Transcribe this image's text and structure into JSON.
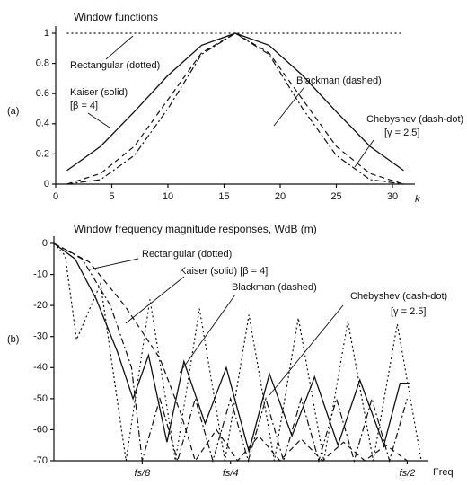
{
  "chart_data": [
    {
      "type": "line",
      "panel_label": "(a)",
      "title": "Window functions",
      "xlabel": "k",
      "x": [
        1,
        4,
        7,
        10,
        13,
        16,
        19,
        22,
        25,
        28,
        31
      ],
      "xlim": [
        0,
        32
      ],
      "xticks": [
        0,
        5,
        10,
        15,
        20,
        25,
        30
      ],
      "ylim": [
        0,
        1
      ],
      "yticks": [
        0,
        0.2,
        0.4,
        0.6,
        0.8,
        1
      ],
      "series": [
        {
          "name": "Rectangular",
          "color": "#111111",
          "dash": "dotted",
          "values": [
            1,
            1,
            1,
            1,
            1,
            1,
            1,
            1,
            1,
            1,
            1
          ]
        },
        {
          "name": "Kaiser",
          "color": "#111111",
          "dash": "solid",
          "values": [
            0.09,
            0.25,
            0.48,
            0.72,
            0.92,
            1,
            0.92,
            0.72,
            0.48,
            0.25,
            0.09
          ]
        },
        {
          "name": "Blackman",
          "color": "#111111",
          "dash": "dashed",
          "values": [
            0.0,
            0.07,
            0.25,
            0.56,
            0.87,
            1,
            0.87,
            0.56,
            0.25,
            0.07,
            0.0
          ]
        },
        {
          "name": "Chebyshev",
          "color": "#111111",
          "dash": "dash-dot",
          "values": [
            0.0,
            0.03,
            0.19,
            0.5,
            0.86,
            1,
            0.86,
            0.5,
            0.19,
            0.03,
            0.0
          ]
        }
      ],
      "annotations": [
        "Rectangular (dotted)",
        "Kaiser (solid)",
        "[β = 4]",
        "Blackman (dashed)",
        "Chebyshev (dash-dot)",
        "[γ = 2.5]"
      ]
    },
    {
      "type": "line",
      "panel_label": "(b)",
      "title": "Window frequency magnitude responses, WdB (m)",
      "xlabel": "Freq",
      "xlim": [
        0,
        0.53
      ],
      "xticks": [
        {
          "value": 0.125,
          "label": "fs/8"
        },
        {
          "value": 0.25,
          "label": "fs/4"
        },
        {
          "value": 0.5,
          "label": "fs/2"
        }
      ],
      "ylim": [
        -70,
        0
      ],
      "yticks": [
        0,
        -10,
        -20,
        -30,
        -40,
        -50,
        -60,
        -70
      ],
      "series": [
        {
          "name": "Rectangular",
          "color": "#111111",
          "dash": "dotted",
          "x": [
            0,
            0.016,
            0.032,
            0.066,
            0.102,
            0.136,
            0.172,
            0.206,
            0.242,
            0.276,
            0.312,
            0.346,
            0.382,
            0.416,
            0.452,
            0.486,
            0.52
          ],
          "values": [
            0,
            -4,
            -31,
            -13,
            -70,
            -18,
            -70,
            -21,
            -70,
            -23,
            -70,
            -24,
            -70,
            -25,
            -70,
            -26,
            -70
          ]
        },
        {
          "name": "Kaiser",
          "color": "#111111",
          "dash": "solid",
          "x": [
            0,
            0.03,
            0.06,
            0.09,
            0.112,
            0.134,
            0.16,
            0.184,
            0.214,
            0.244,
            0.276,
            0.305,
            0.337,
            0.369,
            0.402,
            0.433,
            0.467,
            0.49,
            0.503
          ],
          "values": [
            0,
            -5,
            -18,
            -35,
            -50,
            -36,
            -64,
            -38,
            -58,
            -40,
            -67,
            -42,
            -62,
            -43,
            -65,
            -44,
            -65,
            -45,
            -45
          ]
        },
        {
          "name": "Blackman",
          "color": "#111111",
          "dash": "dashed",
          "x": [
            0,
            0.05,
            0.1,
            0.15,
            0.18,
            0.2,
            0.23,
            0.26,
            0.29,
            0.32,
            0.35,
            0.38,
            0.41,
            0.44,
            0.47,
            0.5
          ],
          "values": [
            0,
            -6,
            -20,
            -37,
            -55,
            -70,
            -60,
            -70,
            -62,
            -70,
            -63,
            -70,
            -64,
            -70,
            -65,
            -70
          ]
        },
        {
          "name": "Chebyshev",
          "color": "#111111",
          "dash": "dash-dot",
          "x": [
            0,
            0.04,
            0.08,
            0.11,
            0.125,
            0.15,
            0.175,
            0.2,
            0.225,
            0.25,
            0.275,
            0.3,
            0.325,
            0.35,
            0.375,
            0.4,
            0.425,
            0.45,
            0.475,
            0.5
          ],
          "values": [
            0,
            -5,
            -20,
            -40,
            -70,
            -50,
            -70,
            -50,
            -70,
            -50,
            -70,
            -50,
            -70,
            -50,
            -70,
            -50,
            -70,
            -50,
            -70,
            -50
          ]
        }
      ],
      "annotations": [
        "Rectangular (dotted)",
        "Kaiser (solid) [β = 4]",
        "Blackman (dashed)",
        "Chebyshev (dash-dot)",
        "[γ = 2.5]"
      ]
    }
  ]
}
